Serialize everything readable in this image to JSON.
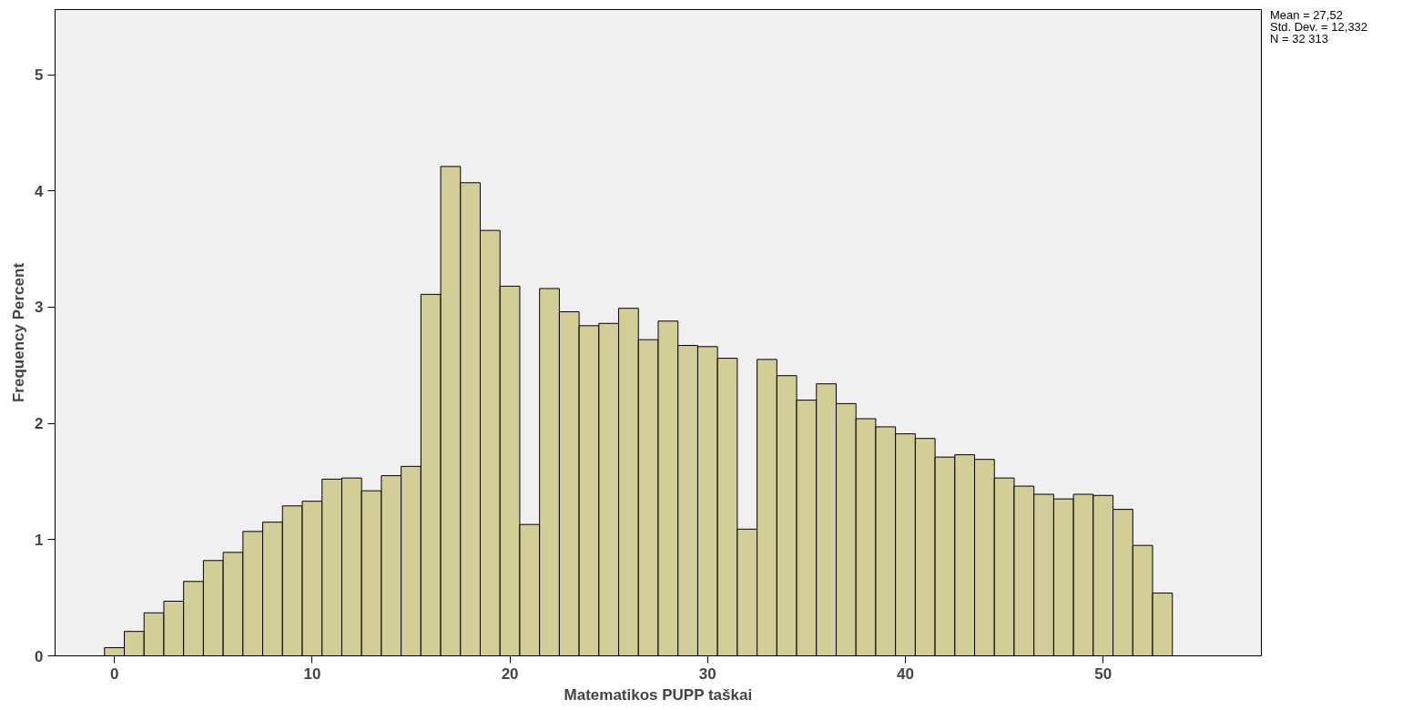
{
  "chart_data": {
    "type": "histogram",
    "xlabel": "Matematikos PUPP taškai",
    "ylabel": "Frequency Percent",
    "bins": [
      -0.5,
      0.5,
      1.5,
      2.5,
      3.5,
      4.5,
      5.5,
      6.5,
      7.5,
      8.5,
      9.5,
      10.5,
      11.5,
      12.5,
      13.5,
      14.5,
      15.5,
      16.5,
      17.5,
      18.5,
      19.5,
      20.5,
      21.5,
      22.5,
      23.5,
      24.5,
      25.5,
      26.5,
      27.5,
      28.5,
      29.5,
      30.5,
      31.5,
      32.5,
      33.5,
      34.5,
      35.5,
      36.5,
      37.5,
      38.5,
      39.5,
      40.5,
      41.5,
      42.5,
      43.5,
      44.5,
      45.5,
      46.5,
      47.5,
      48.5,
      49.5,
      50.5,
      51.5,
      52.5,
      53.5
    ],
    "values": [
      0.07,
      0.21,
      0.37,
      0.47,
      0.64,
      0.82,
      0.89,
      1.07,
      1.15,
      1.29,
      1.33,
      1.52,
      1.53,
      1.42,
      1.55,
      1.63,
      3.11,
      4.21,
      4.07,
      3.66,
      3.18,
      1.13,
      3.16,
      2.96,
      2.84,
      2.86,
      2.99,
      2.72,
      2.88,
      2.67,
      2.66,
      2.56,
      1.09,
      2.55,
      2.41,
      2.2,
      2.34,
      2.17,
      2.04,
      1.97,
      1.91,
      1.87,
      1.71,
      1.73,
      1.69,
      1.53,
      1.46,
      1.39,
      1.35,
      1.39,
      1.38,
      1.26,
      0.95,
      0.54
    ],
    "color": "#d3ce97",
    "xlim": [
      -3.0,
      58.0
    ],
    "ylim": [
      0,
      5.56
    ],
    "xticks": [
      0,
      10,
      20,
      30,
      40,
      50
    ],
    "yticks": [
      0,
      1,
      2,
      3,
      4,
      5
    ],
    "grid": false,
    "annotations": [
      "Mean = 27,52",
      "Std. Dev. = 12,332",
      "N = 32 313"
    ]
  }
}
